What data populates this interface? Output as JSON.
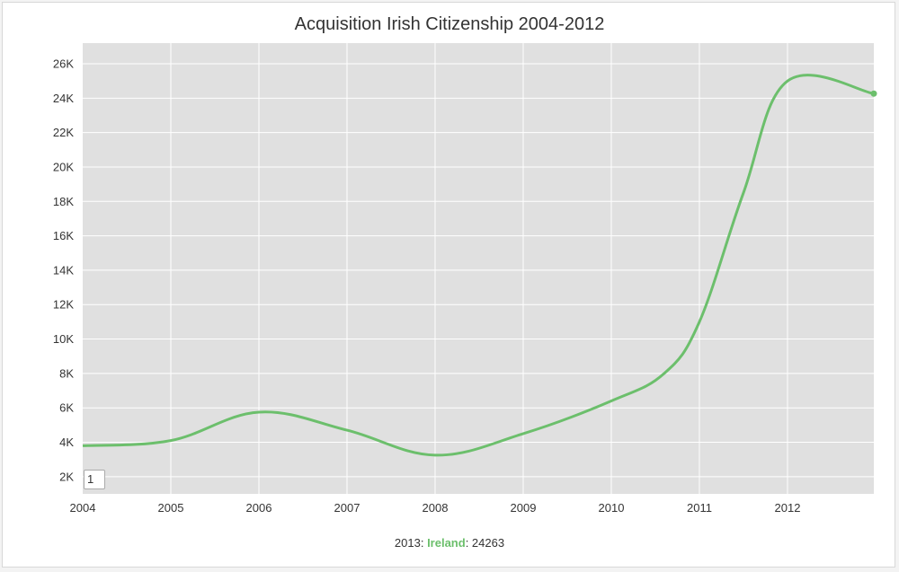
{
  "chart_data": {
    "type": "line",
    "title": "Acquisition Irish Citizenship 2004-2012",
    "xlabel": "",
    "ylabel": "",
    "x": [
      2004,
      2005,
      2006,
      2007,
      2008,
      2009,
      2010,
      2010.6,
      2011,
      2011.5,
      2012,
      2012.98
    ],
    "series": [
      {
        "name": "Ireland",
        "color": "#6cbf6c",
        "values": [
          3800,
          4100,
          5750,
          4700,
          3250,
          4500,
          6400,
          8000,
          11000,
          18500,
          25000,
          24263
        ]
      }
    ],
    "xlim": [
      2004,
      2012.98
    ],
    "ylim": [
      1000,
      27200
    ],
    "x_ticks": [
      "2004",
      "2005",
      "2006",
      "2007",
      "2008",
      "2009",
      "2010",
      "2011",
      "2012"
    ],
    "y_ticks": [
      "2K",
      "4K",
      "6K",
      "8K",
      "10K",
      "12K",
      "14K",
      "16K",
      "18K",
      "20K",
      "22K",
      "24K",
      "26K"
    ],
    "grid": true,
    "background": "#e0e0e0",
    "legend": {
      "x_label": "2013",
      "series": "Ireland",
      "value": "24263"
    },
    "roller_value": "1"
  }
}
